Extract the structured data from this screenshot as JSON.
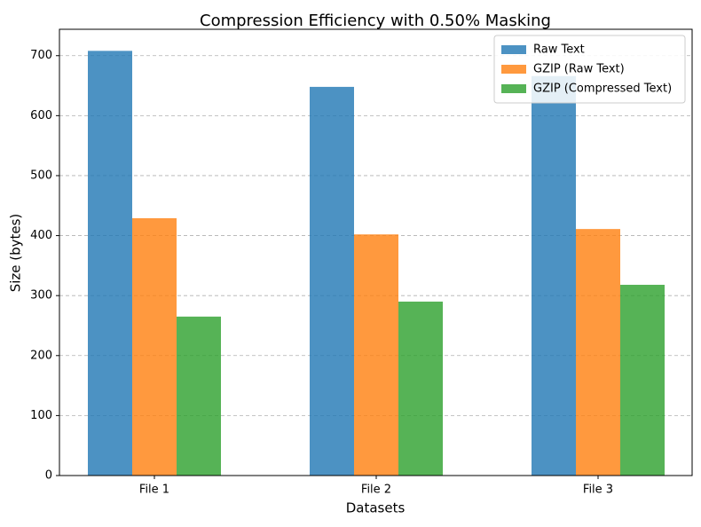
{
  "chart_data": {
    "type": "bar",
    "title": "Compression Efficiency with 0.50% Masking",
    "x_label": "Datasets",
    "y_label": "Size (bytes)",
    "categories": [
      "File 1",
      "File 2",
      "File 3"
    ],
    "series": [
      {
        "name": "Raw Text",
        "color": "#1f77b4",
        "values": [
          708,
          648,
          666
        ]
      },
      {
        "name": "GZIP (Raw Text)",
        "color": "#ff7f0e",
        "values": [
          429,
          402,
          411
        ]
      },
      {
        "name": "GZIP (Compressed Text)",
        "color": "#2ca02c",
        "values": [
          265,
          290,
          318
        ]
      }
    ],
    "ylim": [
      0,
      744
    ],
    "yticks": [
      0,
      100,
      200,
      300,
      400,
      500,
      600,
      700
    ],
    "grid": true,
    "legend": "upper right"
  }
}
